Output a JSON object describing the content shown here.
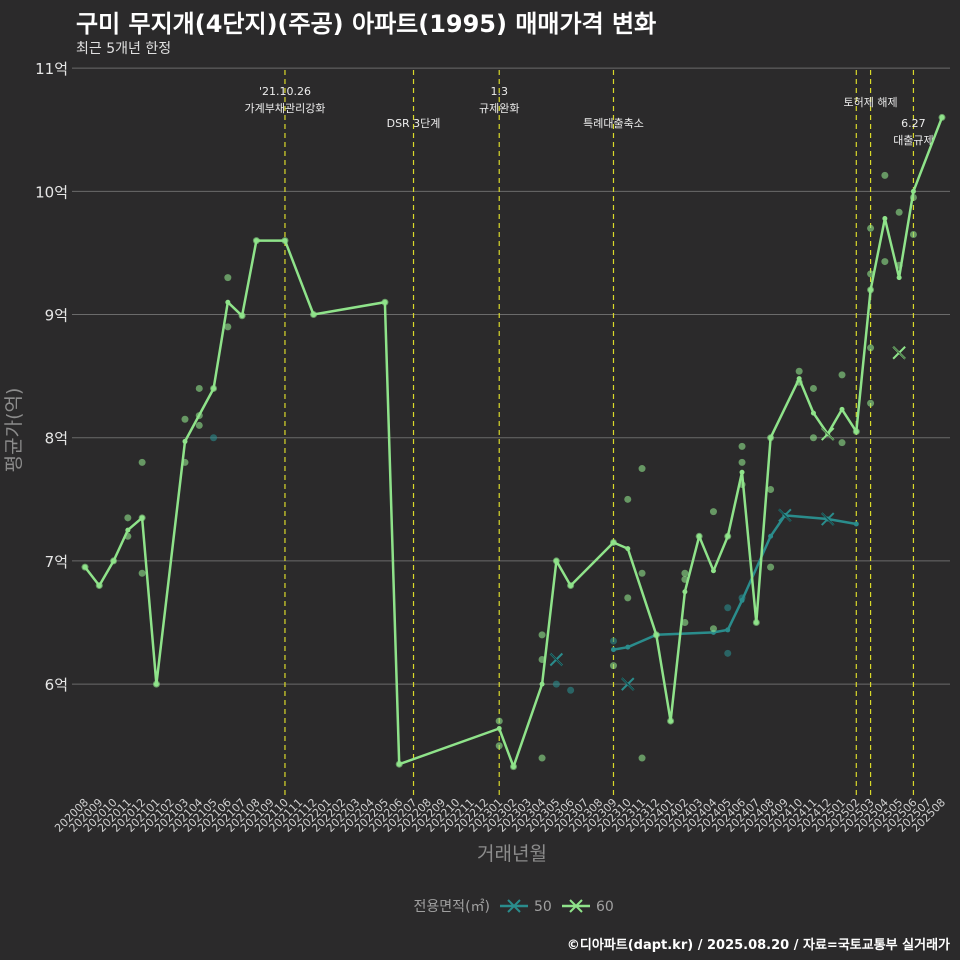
{
  "header": {
    "title": "구미 무지개(4단지)(주공) 아파트(1995) 매매가격 변화",
    "subtitle": "최근 5개년 한정"
  },
  "caption": "©디아파트(dapt.kr) / 2025.08.20 / 자료=국토교통부 실거래가",
  "colors": {
    "background": "#2b2a2b",
    "grid": "#6b6b6b",
    "event_line": "#d9d92a",
    "series_50": "#2a8c8c",
    "series_60": "#8fe38a"
  },
  "chart_data": {
    "type": "line",
    "xlabel": "거래년월",
    "ylabel": "평균가(억)",
    "ylim": [
      5.1,
      11.05
    ],
    "y_ticks": [
      {
        "value": 6,
        "label": "6억"
      },
      {
        "value": 7,
        "label": "7억"
      },
      {
        "value": 8,
        "label": "8억"
      },
      {
        "value": 9,
        "label": "9억"
      },
      {
        "value": 10,
        "label": "10억"
      },
      {
        "value": 11,
        "label": "11억"
      }
    ],
    "months": [
      "202008",
      "202009",
      "202010",
      "202011",
      "202012",
      "202101",
      "202102",
      "202103",
      "202104",
      "202105",
      "202106",
      "202107",
      "202108",
      "202109",
      "202110",
      "202111",
      "202112",
      "202201",
      "202202",
      "202203",
      "202204",
      "202205",
      "202206",
      "202207",
      "202208",
      "202209",
      "202210",
      "202211",
      "202212",
      "202301",
      "202302",
      "202303",
      "202304",
      "202305",
      "202306",
      "202307",
      "202308",
      "202309",
      "202310",
      "202311",
      "202312",
      "202401",
      "202402",
      "202403",
      "202404",
      "202405",
      "202406",
      "202407",
      "202408",
      "202409",
      "202410",
      "202411",
      "202412",
      "202501",
      "202502",
      "202503",
      "202504",
      "202505",
      "202506",
      "202507",
      "202508"
    ],
    "events": [
      {
        "month": "202110",
        "offset": 0.0,
        "lines": [
          "'21.10.26",
          "가계부채관리강화"
        ],
        "row": 0
      },
      {
        "month": "202207",
        "offset": 0.0,
        "lines": [
          "DSR 3단계"
        ],
        "row": 1
      },
      {
        "month": "202301",
        "offset": 0.0,
        "lines": [
          "1.3",
          "규제완화"
        ],
        "row": 0
      },
      {
        "month": "202309",
        "offset": 0.0,
        "lines": [
          "특례대출축소"
        ],
        "row": 1
      },
      {
        "month": "202502",
        "offset": 0.0,
        "lines": [],
        "row": 0
      },
      {
        "month": "202503",
        "offset": 0.0,
        "lines": [
          "토허제 해제"
        ],
        "row": 0.35
      },
      {
        "month": "202506",
        "offset": 0.0,
        "lines": [
          "6.27",
          "대출규제"
        ],
        "row": 1
      }
    ],
    "legend": {
      "title": "전용면적(㎡)",
      "items": [
        {
          "name": "50",
          "color": "#2a8c8c"
        },
        {
          "name": "60",
          "color": "#8fe38a"
        }
      ]
    },
    "series": [
      {
        "name": "50",
        "color": "#2a8c8c",
        "line": [
          {
            "x": "202309",
            "y": 6.28
          },
          {
            "x": "202310",
            "y": 6.3
          },
          {
            "x": "202312",
            "y": 6.4
          },
          {
            "x": "202404",
            "y": 6.42
          },
          {
            "x": "202405",
            "y": 6.44
          },
          {
            "x": "202406",
            "y": 6.68
          },
          {
            "x": "202408",
            "y": 7.2
          },
          {
            "x": "202409",
            "y": 7.37
          },
          {
            "x": "202412",
            "y": 7.34
          },
          {
            "x": "202502",
            "y": 7.3
          }
        ],
        "trades": [
          {
            "x": "202105",
            "y": 8.0
          },
          {
            "x": "202305",
            "y": 6.0
          },
          {
            "x": "202306",
            "y": 5.95
          },
          {
            "x": "202309",
            "y": 6.35
          },
          {
            "x": "202405",
            "y": 6.62
          },
          {
            "x": "202405",
            "y": 6.25
          },
          {
            "x": "202406",
            "y": 6.7
          }
        ],
        "crosses": [
          {
            "x": "202305",
            "y": 6.2
          },
          {
            "x": "202310",
            "y": 6.0
          },
          {
            "x": "202409",
            "y": 7.37
          },
          {
            "x": "202412",
            "y": 7.34
          }
        ]
      },
      {
        "name": "60",
        "color": "#8fe38a",
        "line": [
          {
            "x": "202008",
            "y": 6.95
          },
          {
            "x": "202009",
            "y": 6.8
          },
          {
            "x": "202010",
            "y": 7.0
          },
          {
            "x": "202011",
            "y": 7.25
          },
          {
            "x": "202012",
            "y": 7.35
          },
          {
            "x": "202101",
            "y": 6.0
          },
          {
            "x": "202103",
            "y": 7.97
          },
          {
            "x": "202105",
            "y": 8.4
          },
          {
            "x": "202106",
            "y": 9.1
          },
          {
            "x": "202107",
            "y": 8.99
          },
          {
            "x": "202108",
            "y": 9.6
          },
          {
            "x": "202110",
            "y": 9.6
          },
          {
            "x": "202112",
            "y": 9.0
          },
          {
            "x": "202205",
            "y": 9.1
          },
          {
            "x": "202206",
            "y": 5.35
          },
          {
            "x": "202301",
            "y": 5.64
          },
          {
            "x": "202302",
            "y": 5.33
          },
          {
            "x": "202304",
            "y": 6.0
          },
          {
            "x": "202305",
            "y": 7.0
          },
          {
            "x": "202306",
            "y": 6.8
          },
          {
            "x": "202309",
            "y": 7.15
          },
          {
            "x": "202310",
            "y": 7.1
          },
          {
            "x": "202312",
            "y": 6.4
          },
          {
            "x": "202401",
            "y": 5.7
          },
          {
            "x": "202402",
            "y": 6.75
          },
          {
            "x": "202403",
            "y": 7.2
          },
          {
            "x": "202404",
            "y": 6.92
          },
          {
            "x": "202405",
            "y": 7.2
          },
          {
            "x": "202406",
            "y": 7.72
          },
          {
            "x": "202407",
            "y": 6.5
          },
          {
            "x": "202408",
            "y": 8.0
          },
          {
            "x": "202410",
            "y": 8.48
          },
          {
            "x": "202411",
            "y": 8.2
          },
          {
            "x": "202412",
            "y": 8.03
          },
          {
            "x": "202501",
            "y": 8.23
          },
          {
            "x": "202502",
            "y": 8.05
          },
          {
            "x": "202503",
            "y": 9.2
          },
          {
            "x": "202504",
            "y": 9.78
          },
          {
            "x": "202505",
            "y": 9.3
          },
          {
            "x": "202506",
            "y": 10.0
          },
          {
            "x": "202508",
            "y": 10.6
          }
        ],
        "trades": [
          {
            "x": "202008",
            "y": 6.95
          },
          {
            "x": "202009",
            "y": 6.8
          },
          {
            "x": "202010",
            "y": 7.0
          },
          {
            "x": "202011",
            "y": 7.2
          },
          {
            "x": "202011",
            "y": 7.35
          },
          {
            "x": "202012",
            "y": 7.8
          },
          {
            "x": "202012",
            "y": 6.9
          },
          {
            "x": "202012",
            "y": 7.35
          },
          {
            "x": "202101",
            "y": 6.0
          },
          {
            "x": "202103",
            "y": 8.15
          },
          {
            "x": "202103",
            "y": 7.8
          },
          {
            "x": "202104",
            "y": 8.4
          },
          {
            "x": "202104",
            "y": 8.1
          },
          {
            "x": "202104",
            "y": 8.18
          },
          {
            "x": "202105",
            "y": 8.4
          },
          {
            "x": "202106",
            "y": 9.3
          },
          {
            "x": "202106",
            "y": 8.9
          },
          {
            "x": "202107",
            "y": 8.99
          },
          {
            "x": "202108",
            "y": 9.6
          },
          {
            "x": "202110",
            "y": 9.6
          },
          {
            "x": "202112",
            "y": 9.0
          },
          {
            "x": "202205",
            "y": 9.1
          },
          {
            "x": "202206",
            "y": 5.35
          },
          {
            "x": "202301",
            "y": 5.7
          },
          {
            "x": "202301",
            "y": 5.5
          },
          {
            "x": "202302",
            "y": 5.33
          },
          {
            "x": "202304",
            "y": 6.4
          },
          {
            "x": "202304",
            "y": 6.2
          },
          {
            "x": "202304",
            "y": 5.4
          },
          {
            "x": "202305",
            "y": 7.0
          },
          {
            "x": "202306",
            "y": 6.8
          },
          {
            "x": "202309",
            "y": 7.15
          },
          {
            "x": "202309",
            "y": 6.15
          },
          {
            "x": "202310",
            "y": 7.5
          },
          {
            "x": "202310",
            "y": 6.7
          },
          {
            "x": "202311",
            "y": 7.75
          },
          {
            "x": "202311",
            "y": 6.9
          },
          {
            "x": "202311",
            "y": 5.4
          },
          {
            "x": "202312",
            "y": 6.4
          },
          {
            "x": "202401",
            "y": 5.7
          },
          {
            "x": "202402",
            "y": 6.9
          },
          {
            "x": "202402",
            "y": 6.85
          },
          {
            "x": "202402",
            "y": 6.5
          },
          {
            "x": "202403",
            "y": 7.2
          },
          {
            "x": "202404",
            "y": 7.4
          },
          {
            "x": "202404",
            "y": 6.45
          },
          {
            "x": "202405",
            "y": 7.2
          },
          {
            "x": "202406",
            "y": 7.93
          },
          {
            "x": "202406",
            "y": 7.8
          },
          {
            "x": "202406",
            "y": 7.62
          },
          {
            "x": "202407",
            "y": 6.5
          },
          {
            "x": "202408",
            "y": 8.0
          },
          {
            "x": "202408",
            "y": 7.58
          },
          {
            "x": "202408",
            "y": 6.95
          },
          {
            "x": "202410",
            "y": 8.54
          },
          {
            "x": "202410",
            "y": 8.45
          },
          {
            "x": "202411",
            "y": 8.4
          },
          {
            "x": "202411",
            "y": 8.0
          },
          {
            "x": "202501",
            "y": 8.51
          },
          {
            "x": "202501",
            "y": 7.96
          },
          {
            "x": "202502",
            "y": 8.05
          },
          {
            "x": "202503",
            "y": 9.7
          },
          {
            "x": "202503",
            "y": 9.33
          },
          {
            "x": "202503",
            "y": 9.2
          },
          {
            "x": "202503",
            "y": 8.73
          },
          {
            "x": "202503",
            "y": 8.28
          },
          {
            "x": "202504",
            "y": 10.13
          },
          {
            "x": "202504",
            "y": 9.43
          },
          {
            "x": "202505",
            "y": 9.83
          },
          {
            "x": "202505",
            "y": 9.4
          },
          {
            "x": "202506",
            "y": 9.95
          },
          {
            "x": "202506",
            "y": 9.65
          },
          {
            "x": "202508",
            "y": 10.6
          }
        ],
        "crosses": [
          {
            "x": "202412",
            "y": 8.03
          },
          {
            "x": "202505",
            "y": 8.69
          }
        ]
      }
    ]
  }
}
